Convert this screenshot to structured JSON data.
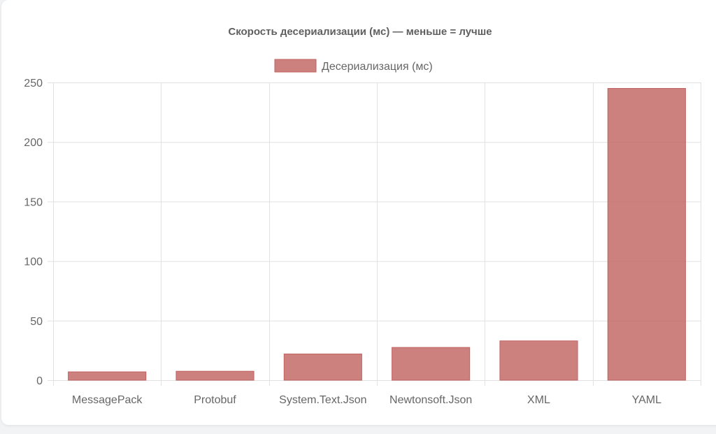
{
  "chart_data": {
    "type": "bar",
    "title": "Скорость десериализации (мс) — меньше = лучше",
    "categories": [
      "MessagePack",
      "Protobuf",
      "System.Text.Json",
      "Newtonsoft.Json",
      "XML",
      "YAML"
    ],
    "series": [
      {
        "name": "Десериализация (мс)",
        "values": [
          7,
          7.5,
          22,
          27.5,
          33,
          245
        ],
        "color": "#c0625f"
      }
    ],
    "ylim": [
      0,
      250
    ],
    "yticks": [
      0,
      50,
      100,
      150,
      200,
      250
    ],
    "grid": true,
    "legend_position": "top-center"
  }
}
